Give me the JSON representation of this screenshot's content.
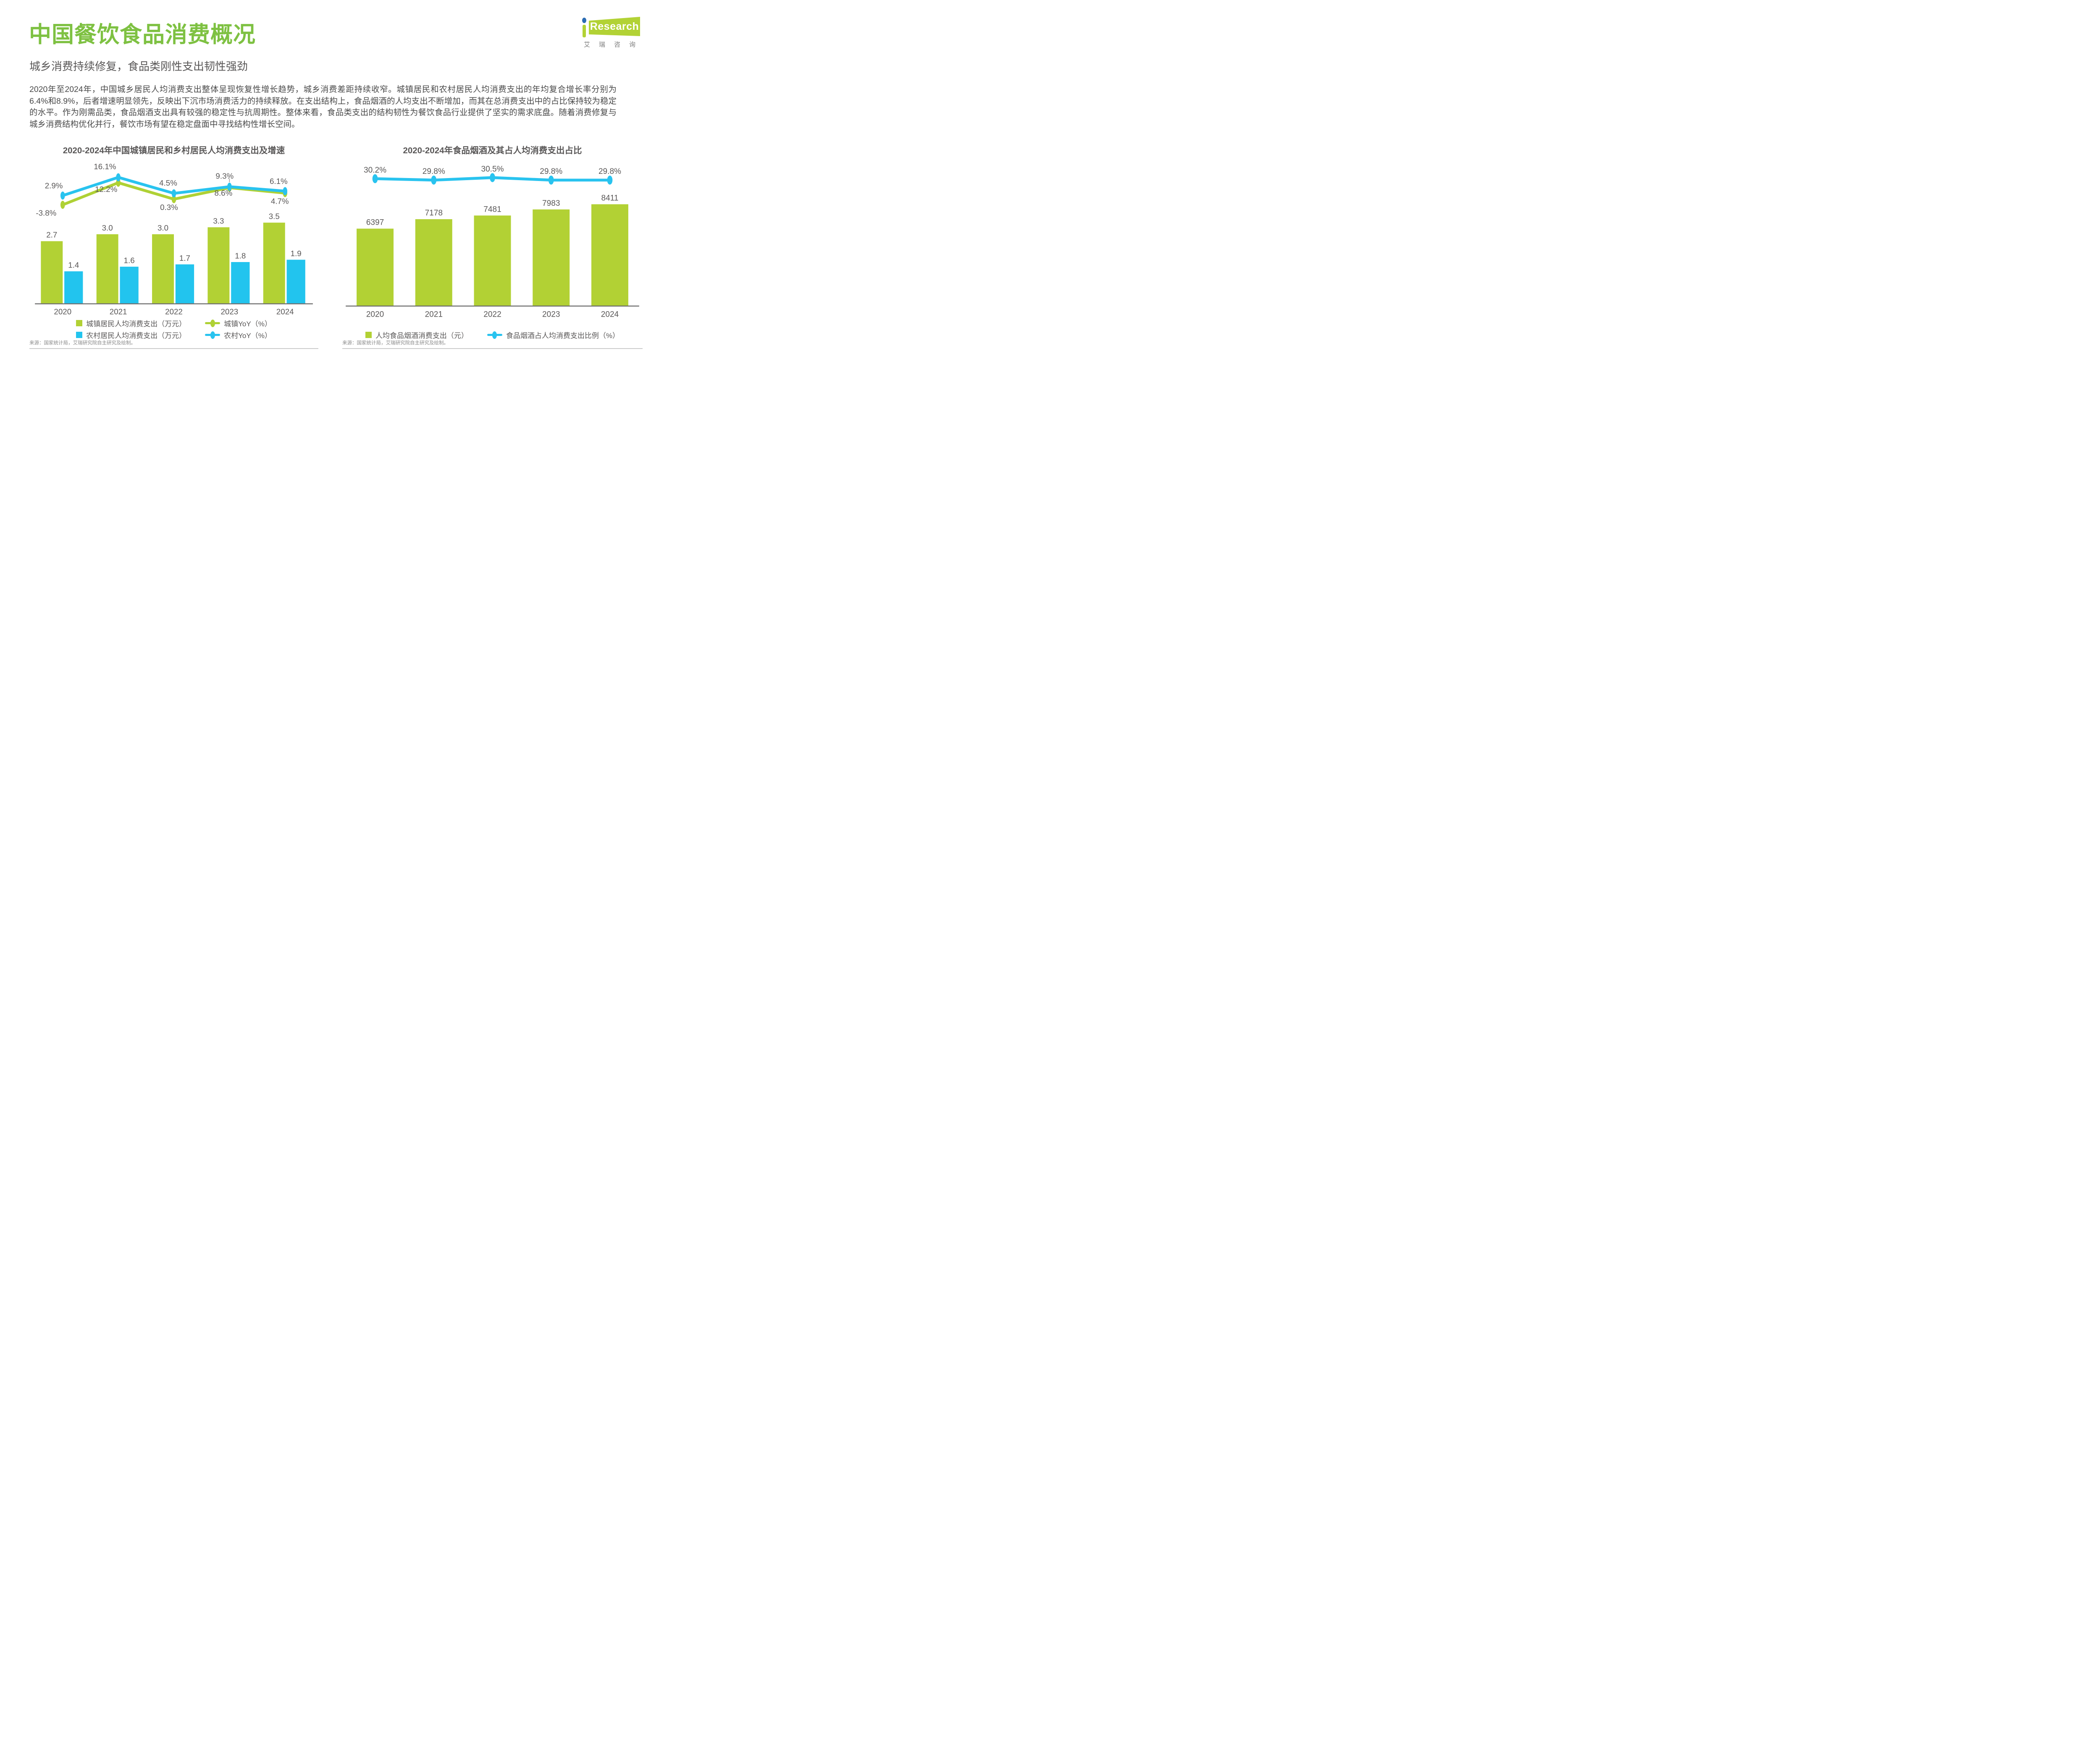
{
  "page": {
    "title": "中国餐饮食品消费概况",
    "subtitle": "城乡消费持续修复，食品类刚性支出韧性强劲",
    "body_paragraph": "2020年至2024年，中国城乡居民人均消费支出整体呈现恢复性增长趋势，城乡消费差距持续收窄。城镇居民和农村居民人均消费支出的年均复合增长率分别为6.4%和8.9%，后者增速明显领先，反映出下沉市场消费活力的持续释放。在支出结构上，食品烟酒的人均支出不断增加，而其在总消费支出中的占比保持较为稳定的水平。作为刚需品类，食品烟酒支出具有较强的稳定性与抗周期性。整体来看，食品类支出的结构韧性为餐饮食品行业提供了坚实的需求底盘。随着消费修复与城乡消费结构优化并行，餐饮市场有望在稳定盘面中寻找结构性增长空间。"
  },
  "logo": {
    "brand_name": "Research",
    "brand_cn": "艾瑞咨询"
  },
  "colors": {
    "title_green": "#7EC142",
    "bar_green": "#B2D134",
    "bar_blue": "#22C4EE",
    "line_green": "#AFD135",
    "line_blue": "#29C3EF",
    "heading_gray": "#595757",
    "body_gray": "#4A4A4A",
    "source_gray": "#8A8A8A",
    "logo_green": "#B2D235",
    "logo_dot_blue": "#2B6CB3"
  },
  "chart_data": [
    {
      "type": "bar+line",
      "title": "2020-2024年中国城镇居民和乡村居民人均消费支出及增速",
      "categories": [
        "2020",
        "2021",
        "2022",
        "2023",
        "2024"
      ],
      "bar_series": [
        {
          "name": "城镇居民人均消费支出（万元）",
          "color": "#B2D134",
          "values": [
            2.7,
            3.0,
            3.0,
            3.3,
            3.5
          ]
        },
        {
          "name": "农村居民人均消费支出（万元）",
          "color": "#22C4EE",
          "values": [
            1.4,
            1.6,
            1.7,
            1.8,
            1.9
          ]
        }
      ],
      "line_series": [
        {
          "name": "城镇YoY（%）",
          "color": "#AFD135",
          "values": [
            -3.8,
            12.2,
            0.3,
            8.6,
            4.7
          ]
        },
        {
          "name": "农村YoY（%）",
          "color": "#29C3EF",
          "values": [
            2.9,
            16.1,
            4.5,
            9.3,
            6.1
          ]
        }
      ],
      "grid": false,
      "legend_position": "bottom",
      "source": "来源：国家统计局，艾瑞研究院自主研究及绘制。"
    },
    {
      "type": "bar+line",
      "title": "2020-2024年食品烟酒及其占人均消费支出占比",
      "categories": [
        "2020",
        "2021",
        "2022",
        "2023",
        "2024"
      ],
      "bar_series": [
        {
          "name": "人均食品烟酒消费支出（元）",
          "color": "#B2D134",
          "values": [
            6397,
            7178,
            7481,
            7983,
            8411
          ]
        }
      ],
      "line_series": [
        {
          "name": "食品烟酒占人均消费支出比例（%）",
          "color": "#29C3EF",
          "values": [
            30.2,
            29.8,
            30.5,
            29.8,
            29.8
          ]
        }
      ],
      "grid": false,
      "legend_position": "bottom",
      "source": "来源：国家统计局，艾瑞研究院自主研究及绘制。"
    }
  ]
}
